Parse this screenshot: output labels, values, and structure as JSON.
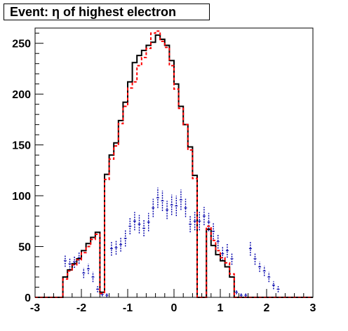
{
  "chart_data": {
    "type": "histogram",
    "title": "Event: η of highest electron",
    "xlabel": "",
    "ylabel": "",
    "xlim": [
      -3,
      3
    ],
    "ylim": [
      0,
      265
    ],
    "bin_width": 0.1,
    "x_ticks": [
      -3,
      -2,
      -1,
      0,
      1,
      2,
      3
    ],
    "x_tick_labels": [
      "-3",
      "-2",
      "-1",
      "0",
      "1",
      "2",
      "3"
    ],
    "y_ticks": [
      0,
      50,
      100,
      150,
      200,
      250
    ],
    "y_tick_labels": [
      "0",
      "50",
      "100",
      "150",
      "200",
      "250"
    ],
    "grid": false,
    "series": [
      {
        "style": "solid-black-step",
        "color": "#000000",
        "bin_edges_start": -3.0,
        "values": [
          0,
          0,
          0,
          0,
          0,
          0,
          20,
          27,
          33,
          38,
          46,
          53,
          59,
          64,
          5,
          121,
          140,
          152,
          174,
          192,
          212,
          231,
          238,
          243,
          248,
          251,
          258,
          254,
          248,
          233,
          210,
          188,
          170,
          148,
          120,
          0,
          0,
          67,
          51,
          42,
          36,
          30,
          20,
          0,
          0,
          0,
          0,
          0,
          0,
          0,
          0,
          0,
          0,
          0,
          0,
          0,
          0,
          0,
          0,
          0
        ]
      },
      {
        "style": "dashed-red-step",
        "color": "#ff0000",
        "bin_edges_start": -3.0,
        "values": [
          0,
          0,
          0,
          0,
          0,
          0,
          18,
          26,
          32,
          37,
          44,
          50,
          57,
          62,
          4,
          116,
          136,
          149,
          171,
          188,
          206,
          212,
          228,
          236,
          245,
          260,
          262,
          252,
          246,
          228,
          205,
          186,
          170,
          145,
          117,
          0,
          0,
          70,
          56,
          46,
          39,
          34,
          23,
          0,
          0,
          0,
          0,
          0,
          0,
          0,
          0,
          0,
          0,
          0,
          0,
          0,
          0,
          0,
          0,
          0
        ]
      },
      {
        "style": "blue-error-bars",
        "color": "#0000aa",
        "x_centers": [
          -2.35,
          -2.25,
          -2.15,
          -2.05,
          -1.95,
          -1.85,
          -1.75,
          -1.65,
          -1.55,
          -1.45,
          -1.35,
          -1.25,
          -1.15,
          -1.05,
          -0.95,
          -0.85,
          -0.75,
          -0.65,
          -0.55,
          -0.45,
          -0.35,
          -0.25,
          -0.15,
          -0.05,
          0.05,
          0.15,
          0.25,
          0.35,
          0.45,
          0.55,
          0.65,
          0.75,
          0.85,
          0.95,
          1.05,
          1.15,
          1.25,
          1.35,
          1.45,
          1.55,
          1.65,
          1.75,
          1.85,
          1.95,
          2.05,
          2.15,
          2.25,
          2.35
        ],
        "values": [
          36,
          33,
          35,
          39,
          24,
          28,
          20,
          8,
          3,
          2,
          48,
          49,
          52,
          58,
          70,
          75,
          72,
          68,
          74,
          88,
          98,
          95,
          86,
          91,
          90,
          96,
          88,
          72,
          75,
          75,
          80,
          74,
          65,
          55,
          43,
          46,
          38,
          5,
          2,
          2,
          48,
          38,
          30,
          26,
          20,
          12,
          8,
          0
        ],
        "errors": [
          6,
          6,
          6,
          6,
          5,
          5,
          5,
          3,
          2,
          2,
          7,
          7,
          7,
          8,
          8,
          9,
          9,
          8,
          9,
          9,
          10,
          10,
          9,
          10,
          10,
          10,
          9,
          8,
          9,
          9,
          9,
          9,
          8,
          7,
          7,
          7,
          6,
          2,
          2,
          2,
          7,
          6,
          5,
          5,
          5,
          4,
          3,
          0
        ]
      }
    ]
  }
}
